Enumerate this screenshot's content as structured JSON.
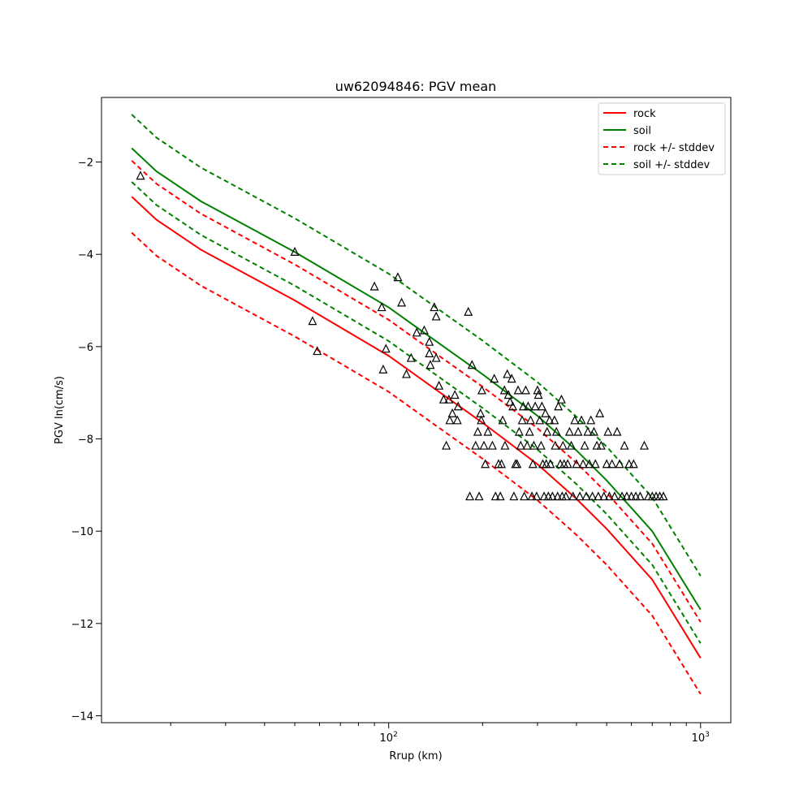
{
  "chart_data": {
    "type": "line",
    "title": "uw62094846: PGV mean",
    "xlabel": "Rrup (km)",
    "ylabel": "PGV ln(cm/s)",
    "xscale": "log",
    "xlim": [
      12,
      1250
    ],
    "ylim": [
      -14.15,
      -0.6
    ],
    "x_ticks": [
      {
        "value": 100,
        "base": "10",
        "exp": "2"
      },
      {
        "value": 1000,
        "base": "10",
        "exp": "3"
      }
    ],
    "y_ticks": [
      -14,
      -12,
      -10,
      -8,
      -6,
      -4,
      -2
    ],
    "y_tick_labels": [
      "−14",
      "−12",
      "−10",
      "−8",
      "−6",
      "−4",
      "−2"
    ],
    "grid": false,
    "legend_position": "top-right",
    "colors": {
      "rock": "#ff0000",
      "soil": "#008000",
      "markers": "#000000"
    },
    "x": [
      15,
      18,
      25,
      50,
      100,
      150,
      200,
      300,
      400,
      500,
      700,
      1000
    ],
    "series": [
      {
        "name": "rock",
        "style": "solid",
        "color": "#ff0000",
        "values": [
          -2.75,
          -3.25,
          -3.9,
          -5.0,
          -6.2,
          -7.05,
          -7.65,
          -8.55,
          -9.3,
          -9.95,
          -11.05,
          -12.75
        ]
      },
      {
        "name": "soil",
        "style": "solid",
        "color": "#008000",
        "values": [
          -1.7,
          -2.2,
          -2.85,
          -3.95,
          -5.15,
          -6.0,
          -6.6,
          -7.5,
          -8.25,
          -8.9,
          -10.0,
          -11.7
        ]
      },
      {
        "name": "rock +/- stddev",
        "style": "dashed",
        "color": "#ff0000",
        "values": [
          -1.97,
          -2.47,
          -3.12,
          -4.22,
          -5.42,
          -6.27,
          -6.87,
          -7.77,
          -8.52,
          -9.17,
          -10.27,
          -11.97
        ]
      },
      {
        "name": "rock +/- stddev",
        "style": "dashed",
        "color": "#ff0000",
        "legend": false,
        "values": [
          -3.53,
          -4.03,
          -4.68,
          -5.78,
          -6.98,
          -7.83,
          -8.43,
          -9.33,
          -10.08,
          -10.73,
          -11.83,
          -13.53
        ]
      },
      {
        "name": "soil +/- stddev",
        "style": "dashed",
        "color": "#008000",
        "values": [
          -0.97,
          -1.47,
          -2.12,
          -3.22,
          -4.42,
          -5.27,
          -5.87,
          -6.77,
          -7.52,
          -8.17,
          -9.27,
          -10.97
        ]
      },
      {
        "name": "soil +/- stddev",
        "style": "dashed",
        "color": "#008000",
        "legend": false,
        "values": [
          -2.43,
          -2.93,
          -3.58,
          -4.68,
          -5.88,
          -6.73,
          -7.33,
          -8.23,
          -8.98,
          -9.63,
          -10.73,
          -12.43
        ]
      }
    ],
    "observations": {
      "marker": "triangle-open",
      "color": "#000000",
      "points": [
        [
          16,
          -2.3
        ],
        [
          50,
          -3.95
        ],
        [
          57,
          -5.45
        ],
        [
          59,
          -6.1
        ],
        [
          90,
          -4.7
        ],
        [
          95,
          -5.15
        ],
        [
          96,
          -6.5
        ],
        [
          98,
          -6.05
        ],
        [
          107,
          -4.5
        ],
        [
          110,
          -5.05
        ],
        [
          114,
          -6.6
        ],
        [
          118,
          -6.25
        ],
        [
          123,
          -5.7
        ],
        [
          130,
          -5.65
        ],
        [
          135,
          -5.9
        ],
        [
          135,
          -6.15
        ],
        [
          136,
          -6.4
        ],
        [
          140,
          -5.15
        ],
        [
          142,
          -5.35
        ],
        [
          142,
          -6.25
        ],
        [
          145,
          -6.85
        ],
        [
          150,
          -7.15
        ],
        [
          153,
          -8.15
        ],
        [
          156,
          -7.15
        ],
        [
          157,
          -7.6
        ],
        [
          160,
          -7.45
        ],
        [
          163,
          -7.05
        ],
        [
          166,
          -7.6
        ],
        [
          167,
          -7.3
        ],
        [
          180,
          -5.25
        ],
        [
          182,
          -9.25
        ],
        [
          185,
          -6.4
        ],
        [
          190,
          -8.15
        ],
        [
          193,
          -7.85
        ],
        [
          195,
          -9.25
        ],
        [
          197,
          -7.45
        ],
        [
          198,
          -7.6
        ],
        [
          199,
          -6.95
        ],
        [
          202,
          -8.15
        ],
        [
          204,
          -8.55
        ],
        [
          208,
          -7.85
        ],
        [
          215,
          -8.15
        ],
        [
          218,
          -6.7
        ],
        [
          220,
          -9.25
        ],
        [
          225,
          -8.55
        ],
        [
          228,
          -9.25
        ],
        [
          230,
          -8.55
        ],
        [
          232,
          -7.6
        ],
        [
          235,
          -6.95
        ],
        [
          236,
          -8.15
        ],
        [
          240,
          -6.6
        ],
        [
          242,
          -7.05
        ],
        [
          245,
          -7.2
        ],
        [
          248,
          -6.7
        ],
        [
          250,
          -7.3
        ],
        [
          252,
          -9.25
        ],
        [
          255,
          -8.55
        ],
        [
          258,
          -8.55
        ],
        [
          260,
          -6.95
        ],
        [
          262,
          -7.85
        ],
        [
          265,
          -8.15
        ],
        [
          268,
          -7.6
        ],
        [
          270,
          -7.3
        ],
        [
          272,
          -9.25
        ],
        [
          275,
          -6.95
        ],
        [
          278,
          -8.15
        ],
        [
          280,
          -7.3
        ],
        [
          283,
          -7.85
        ],
        [
          285,
          -7.6
        ],
        [
          288,
          -9.25
        ],
        [
          290,
          -8.55
        ],
        [
          292,
          -8.15
        ],
        [
          295,
          -7.3
        ],
        [
          298,
          -9.25
        ],
        [
          300,
          -6.95
        ],
        [
          302,
          -7.05
        ],
        [
          305,
          -7.6
        ],
        [
          308,
          -8.15
        ],
        [
          310,
          -7.3
        ],
        [
          312,
          -8.55
        ],
        [
          315,
          -9.25
        ],
        [
          318,
          -7.45
        ],
        [
          320,
          -8.55
        ],
        [
          322,
          -7.85
        ],
        [
          325,
          -9.25
        ],
        [
          328,
          -7.6
        ],
        [
          330,
          -8.55
        ],
        [
          335,
          -9.25
        ],
        [
          340,
          -7.6
        ],
        [
          342,
          -8.15
        ],
        [
          345,
          -7.85
        ],
        [
          348,
          -9.25
        ],
        [
          350,
          -7.3
        ],
        [
          355,
          -8.55
        ],
        [
          358,
          -7.15
        ],
        [
          360,
          -9.25
        ],
        [
          362,
          -8.15
        ],
        [
          365,
          -8.55
        ],
        [
          370,
          -9.25
        ],
        [
          375,
          -8.55
        ],
        [
          380,
          -7.85
        ],
        [
          385,
          -8.15
        ],
        [
          390,
          -9.25
        ],
        [
          395,
          -7.6
        ],
        [
          400,
          -8.55
        ],
        [
          405,
          -7.85
        ],
        [
          410,
          -9.25
        ],
        [
          415,
          -7.6
        ],
        [
          420,
          -8.55
        ],
        [
          425,
          -8.15
        ],
        [
          430,
          -9.25
        ],
        [
          435,
          -7.85
        ],
        [
          440,
          -8.55
        ],
        [
          445,
          -7.6
        ],
        [
          450,
          -9.25
        ],
        [
          455,
          -7.85
        ],
        [
          460,
          -8.55
        ],
        [
          465,
          -8.15
        ],
        [
          470,
          -9.25
        ],
        [
          475,
          -7.45
        ],
        [
          480,
          -8.15
        ],
        [
          490,
          -9.25
        ],
        [
          500,
          -8.55
        ],
        [
          505,
          -7.85
        ],
        [
          510,
          -9.25
        ],
        [
          520,
          -8.55
        ],
        [
          530,
          -9.25
        ],
        [
          540,
          -7.85
        ],
        [
          550,
          -8.55
        ],
        [
          560,
          -9.25
        ],
        [
          570,
          -8.15
        ],
        [
          580,
          -9.25
        ],
        [
          590,
          -8.55
        ],
        [
          600,
          -9.25
        ],
        [
          610,
          -8.55
        ],
        [
          620,
          -9.25
        ],
        [
          640,
          -9.25
        ],
        [
          660,
          -8.15
        ],
        [
          680,
          -9.25
        ],
        [
          700,
          -9.25
        ],
        [
          720,
          -9.25
        ],
        [
          740,
          -9.25
        ],
        [
          760,
          -9.25
        ]
      ]
    }
  }
}
